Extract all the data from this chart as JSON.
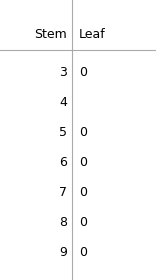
{
  "title_stem": "Stem",
  "title_leaf": "Leaf",
  "rows": [
    {
      "stem": "3",
      "leaf": "0"
    },
    {
      "stem": "4",
      "leaf": ""
    },
    {
      "stem": "5",
      "leaf": "0"
    },
    {
      "stem": "6",
      "leaf": "0"
    },
    {
      "stem": "7",
      "leaf": "0"
    },
    {
      "stem": "8",
      "leaf": "0"
    },
    {
      "stem": "9",
      "leaf": "0"
    }
  ],
  "background_color": "#ffffff",
  "text_color": "#000000",
  "line_color": "#aaaaaa",
  "font_size": 9,
  "header_font_size": 9,
  "fig_width": 1.56,
  "fig_height": 2.8,
  "dpi": 100
}
